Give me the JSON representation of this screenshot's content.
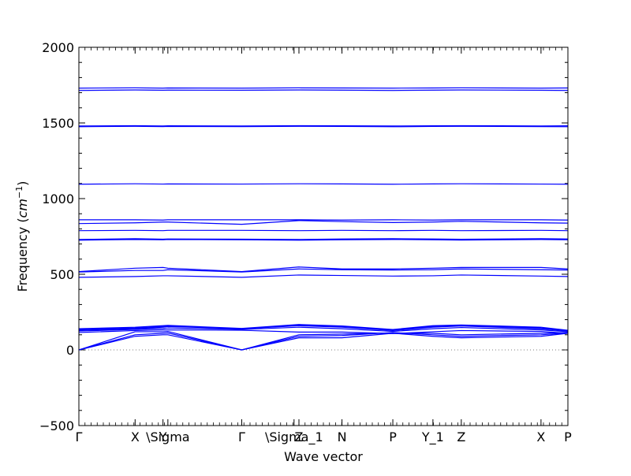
{
  "chart_data": {
    "type": "line",
    "title": "",
    "xlabel": "Wave vector",
    "ylabel_text": "Frequency (",
    "ylabel_unit": "cm",
    "ylabel_exp": "−1",
    "ylabel_close": ")",
    "ylim": [
      -500,
      2000
    ],
    "yticks": [
      -500,
      0,
      500,
      1000,
      1500,
      2000
    ],
    "xlim": [
      0,
      1
    ],
    "grid": false,
    "zero_line": "dotted",
    "color": "#0000ff",
    "xticks": [
      {
        "x": 0.0,
        "label": "Γ"
      },
      {
        "x": 0.115,
        "label": "X"
      },
      {
        "x": 0.172,
        "label": "Y"
      },
      {
        "x": 0.182,
        "label": "\\Sigma"
      },
      {
        "x": 0.333,
        "label": "Γ"
      },
      {
        "x": 0.44,
        "label": "\\Sigma_1"
      },
      {
        "x": 0.45,
        "label": "Z"
      },
      {
        "x": 0.538,
        "label": "N"
      },
      {
        "x": 0.642,
        "label": "P"
      },
      {
        "x": 0.724,
        "label": "Y_1"
      },
      {
        "x": 0.782,
        "label": "Z"
      },
      {
        "x": 0.945,
        "label": "X"
      },
      {
        "x": 1.0,
        "label": "P"
      }
    ],
    "knots": [
      0,
      0.115,
      0.172,
      0.182,
      0.333,
      0.45,
      0.538,
      0.642,
      0.724,
      0.782,
      0.945,
      1.0
    ],
    "series": [
      {
        "values": [
          0,
          90,
          100,
          100,
          0,
          80,
          80,
          110,
          90,
          80,
          90,
          110
        ]
      },
      {
        "values": [
          0,
          100,
          110,
          112,
          0,
          90,
          95,
          115,
          100,
          90,
          100,
          112
        ]
      },
      {
        "values": [
          0,
          120,
          120,
          122,
          0,
          100,
          105,
          112,
          110,
          100,
          110,
          115
        ]
      },
      {
        "values": [
          115,
          128,
          132,
          132,
          130,
          118,
          118,
          108,
          120,
          128,
          122,
          110
        ]
      },
      {
        "values": [
          125,
          135,
          142,
          145,
          135,
          150,
          140,
          122,
          140,
          148,
          132,
          120
        ]
      },
      {
        "values": [
          130,
          140,
          150,
          155,
          140,
          160,
          150,
          128,
          150,
          158,
          140,
          125
        ]
      },
      {
        "values": [
          135,
          145,
          155,
          158,
          140,
          165,
          155,
          132,
          155,
          162,
          145,
          128
        ]
      },
      {
        "values": [
          140,
          150,
          160,
          162,
          142,
          168,
          158,
          135,
          160,
          165,
          150,
          130
        ]
      },
      {
        "values": [
          480,
          485,
          490,
          490,
          480,
          495,
          492,
          488,
          490,
          495,
          488,
          485
        ]
      },
      {
        "values": [
          515,
          525,
          525,
          530,
          515,
          535,
          530,
          528,
          530,
          535,
          530,
          528
        ]
      },
      {
        "values": [
          518,
          540,
          545,
          540,
          518,
          548,
          535,
          535,
          540,
          545,
          545,
          535
        ]
      },
      {
        "values": [
          725,
          730,
          728,
          730,
          728,
          725,
          728,
          730,
          728,
          726,
          730,
          728
        ]
      },
      {
        "values": [
          730,
          735,
          732,
          733,
          732,
          730,
          733,
          735,
          733,
          731,
          735,
          733
        ]
      },
      {
        "values": [
          788,
          790,
          788,
          790,
          790,
          788,
          790,
          788,
          790,
          788,
          790,
          788
        ]
      },
      {
        "values": [
          835,
          840,
          845,
          845,
          830,
          855,
          848,
          842,
          845,
          850,
          840,
          838
        ]
      },
      {
        "values": [
          860,
          860,
          858,
          860,
          860,
          860,
          858,
          860,
          858,
          860,
          860,
          858
        ]
      },
      {
        "values": [
          1095,
          1098,
          1096,
          1097,
          1096,
          1098,
          1097,
          1095,
          1097,
          1098,
          1096,
          1095
        ]
      },
      {
        "values": [
          1475,
          1478,
          1476,
          1477,
          1476,
          1478,
          1477,
          1475,
          1477,
          1478,
          1476,
          1475
        ]
      },
      {
        "values": [
          1480,
          1482,
          1480,
          1481,
          1480,
          1482,
          1481,
          1480,
          1481,
          1482,
          1480,
          1481
        ]
      },
      {
        "values": [
          1715,
          1718,
          1716,
          1717,
          1716,
          1718,
          1717,
          1715,
          1717,
          1718,
          1716,
          1715
        ]
      },
      {
        "values": [
          1730,
          1732,
          1730,
          1731,
          1730,
          1732,
          1731,
          1730,
          1731,
          1732,
          1730,
          1731
        ]
      }
    ]
  }
}
